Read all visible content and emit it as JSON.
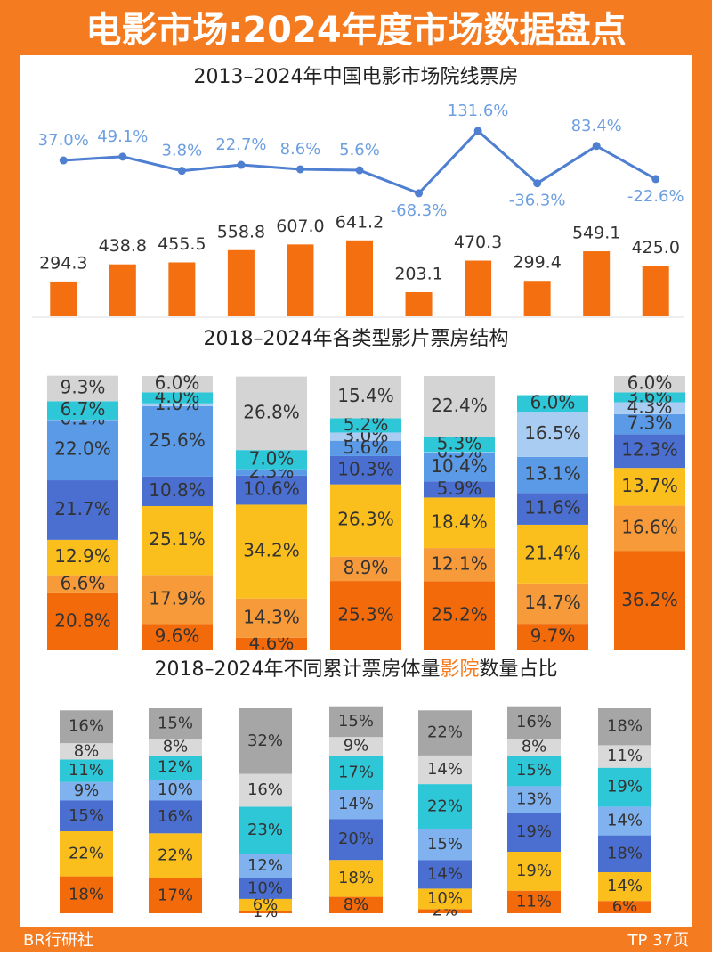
{
  "header": {
    "title": "电影市场:2024年度市场数据盘点"
  },
  "chart_data": [
    {
      "type": "bar",
      "title": "2013–2024年中国电影市场院线票房",
      "ylim": [
        0,
        700
      ],
      "y2lim": [
        -120,
        220
      ],
      "series": [
        {
          "color": "#f36f0f",
          "values": [
            294.3,
            438.8,
            455.5,
            558.8,
            607.0,
            641.2,
            203.1,
            470.3,
            299.4,
            549.1,
            425.0
          ],
          "value_labels": [
            "294.3",
            "438.8",
            "455.5",
            "558.8",
            "607.0",
            "641.2",
            "203.1",
            "470.3",
            "299.4",
            "549.1",
            "425.0"
          ]
        },
        {
          "type": "line",
          "axis": "y2",
          "color": "#4f7fd1",
          "values": [
            37.0,
            49.1,
            3.8,
            22.7,
            8.6,
            5.6,
            -68.3,
            131.6,
            -36.3,
            83.4,
            -22.6
          ],
          "value_labels": [
            "37.0%",
            "49.1%",
            "3.8%",
            "22.7%",
            "8.6%",
            "5.6%",
            "-68.3%",
            "131.6%",
            "-36.3%",
            "83.4%",
            "-22.6%"
          ]
        }
      ]
    },
    {
      "type": "stacked_bar",
      "title": "2018–2024年各类型影片票房结构",
      "ylim": [
        0,
        100
      ],
      "series": [
        {
          "color": "#f26a0a",
          "values": [
            20.8,
            9.6,
            4.6,
            25.3,
            25.2,
            9.7,
            36.2
          ],
          "value_labels": [
            "20.8%",
            "9.6%",
            "4.6%",
            "25.3%",
            "25.2%",
            "9.7%",
            "36.2%"
          ]
        },
        {
          "color": "#f79a3a",
          "values": [
            6.6,
            17.9,
            14.3,
            8.9,
            12.1,
            14.7,
            16.6
          ],
          "value_labels": [
            "6.6%",
            "17.9%",
            "14.3%",
            "8.9%",
            "12.1%",
            "14.7%",
            "16.6%"
          ]
        },
        {
          "color": "#fbbf1d",
          "values": [
            12.9,
            25.1,
            34.2,
            26.3,
            18.4,
            21.4,
            13.7
          ],
          "value_labels": [
            "12.9%",
            "25.1%",
            "34.2%",
            "26.3%",
            "18.4%",
            "21.4%",
            "13.7%"
          ]
        },
        {
          "color": "#4a6fd0",
          "values": [
            21.7,
            10.8,
            10.6,
            10.3,
            5.9,
            11.6,
            12.3
          ],
          "value_labels": [
            "21.7%",
            "10.8%",
            "10.6%",
            "10.3%",
            "5.9%",
            "11.6%",
            "12.3%"
          ]
        },
        {
          "color": "#5a9ae6",
          "values": [
            22.0,
            25.6,
            2.3,
            5.6,
            10.4,
            13.1,
            7.3
          ],
          "value_labels": [
            "22.0%",
            "25.6%",
            "2.3%",
            "5.6%",
            "10.4%",
            "13.1%",
            "7.3%"
          ]
        },
        {
          "color": "#a9cdf2",
          "values": [
            0.1,
            1.0,
            null,
            3.0,
            0.3,
            16.5,
            4.3
          ],
          "value_labels": [
            "0.1%",
            "1.0%",
            null,
            "3.0%",
            "0.3%",
            "16.5%",
            "4.3%"
          ]
        },
        {
          "color": "#2ec7d8",
          "values": [
            6.7,
            4.0,
            7.0,
            5.2,
            5.3,
            6.0,
            3.6
          ],
          "value_labels": [
            "6.7%",
            "4.0%",
            "7.0%",
            "5.2%",
            "5.3%",
            "6.0%",
            "3.6%"
          ]
        },
        {
          "color": "#d4d4d4",
          "values": [
            9.3,
            6.0,
            26.8,
            15.4,
            22.4,
            null,
            6.0
          ],
          "value_labels": [
            "9.3%",
            "6.0%",
            "26.8%",
            "15.4%",
            "22.4%",
            null,
            "6.0%"
          ]
        }
      ]
    },
    {
      "type": "stacked_bar",
      "title": [
        "2018–2024年不同累计票房体量",
        "影院",
        "数量占比"
      ],
      "ylim": [
        0,
        100
      ],
      "series": [
        {
          "color": "#f26a0a",
          "values": [
            18,
            17,
            1,
            8,
            2,
            11,
            6
          ],
          "value_labels": [
            "18%",
            "17%",
            "1%",
            "8%",
            "2%",
            "11%",
            "6%"
          ]
        },
        {
          "color": "#fbbf1d",
          "values": [
            22,
            22,
            6,
            18,
            10,
            19,
            14
          ],
          "value_labels": [
            "22%",
            "22%",
            "6%",
            "18%",
            "10%",
            "19%",
            "14%"
          ]
        },
        {
          "color": "#4a6fd0",
          "values": [
            15,
            16,
            10,
            20,
            14,
            19,
            18
          ],
          "value_labels": [
            "15%",
            "16%",
            "10%",
            "20%",
            "14%",
            "19%",
            "18%"
          ]
        },
        {
          "color": "#7fb2ee",
          "values": [
            9,
            10,
            12,
            14,
            15,
            13,
            14
          ],
          "value_labels": [
            "9%",
            "10%",
            "12%",
            "14%",
            "15%",
            "13%",
            "14%"
          ]
        },
        {
          "color": "#2ec7d8",
          "values": [
            11,
            12,
            23,
            17,
            22,
            15,
            19
          ],
          "value_labels": [
            "11%",
            "12%",
            "23%",
            "17%",
            "22%",
            "15%",
            "19%"
          ]
        },
        {
          "color": "#d9d9d9",
          "values": [
            8,
            8,
            16,
            9,
            14,
            8,
            11
          ],
          "value_labels": [
            "8%",
            "8%",
            "16%",
            "9%",
            "14%",
            "8%",
            "11%"
          ]
        },
        {
          "color": "#a6a6a6",
          "values": [
            16,
            15,
            32,
            15,
            22,
            16,
            18
          ],
          "value_labels": [
            "16%",
            "15%",
            "32%",
            "15%",
            "22%",
            "16%",
            "18%"
          ]
        }
      ]
    }
  ],
  "footer": {
    "left": "BR行研社",
    "right": "TP 37页"
  }
}
